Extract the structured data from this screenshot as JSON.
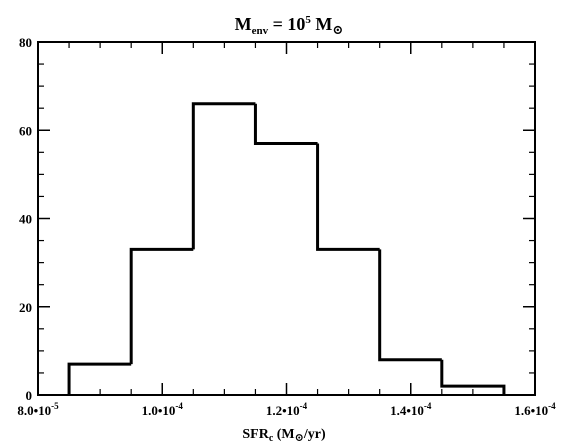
{
  "chart_data": {
    "type": "bar",
    "subtype": "step-histogram",
    "title": {
      "base": "M",
      "base_sub": "env",
      "mid": " = 10",
      "exp": "5",
      "unit": " M",
      "unit_sub": "⊙"
    },
    "xlabel": {
      "base": "SFR",
      "base_sub": "c",
      "rest_open": " (M",
      "rest_sub": "⊙",
      "rest_close": "/yr)"
    },
    "ylabel": "",
    "xlim": [
      8e-05,
      0.00016
    ],
    "ylim": [
      0,
      80
    ],
    "x_ticks": [
      {
        "value": 8e-05,
        "mantissa": "8.0•10",
        "exp": "-5"
      },
      {
        "value": 0.0001,
        "mantissa": "1.0•10",
        "exp": "-4"
      },
      {
        "value": 0.00012,
        "mantissa": "1.2•10",
        "exp": "-4"
      },
      {
        "value": 0.00014,
        "mantissa": "1.4•10",
        "exp": "-4"
      },
      {
        "value": 0.00016,
        "mantissa": "1.6•10",
        "exp": "-4"
      }
    ],
    "y_ticks": [
      {
        "value": 0,
        "label": "0"
      },
      {
        "value": 20,
        "label": "20"
      },
      {
        "value": 40,
        "label": "40"
      },
      {
        "value": 60,
        "label": "60"
      },
      {
        "value": 80,
        "label": "80"
      }
    ],
    "bin_edges": [
      8.5e-05,
      9.5e-05,
      0.000105,
      0.000115,
      0.000125,
      0.000135,
      0.000145,
      0.000155
    ],
    "values": [
      7,
      33,
      66,
      57,
      33,
      8,
      2
    ],
    "grid": false,
    "legend": "none",
    "colors": {
      "line": "#000000",
      "background": "#ffffff"
    }
  }
}
